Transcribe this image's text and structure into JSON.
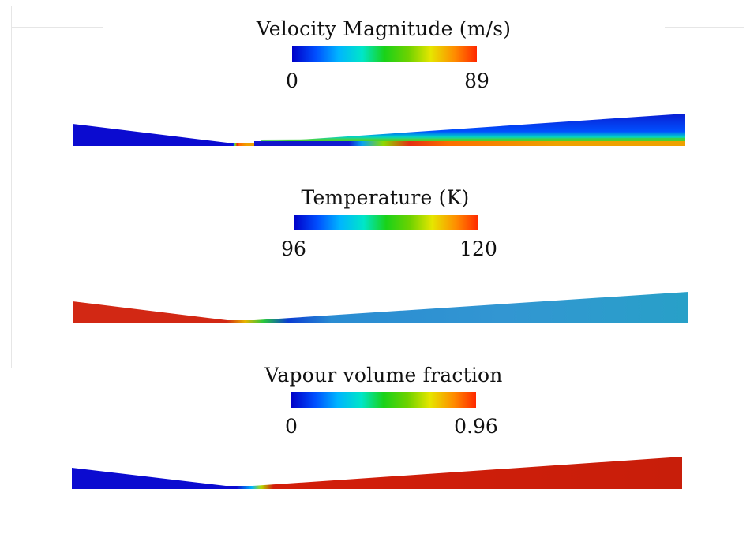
{
  "panels": [
    {
      "title": "Velocity Magnitude (m/s)",
      "min_label": "0",
      "max_label": "89"
    },
    {
      "title": "Temperature (K)",
      "min_label": "96",
      "max_label": "120"
    },
    {
      "title": "Vapour volume fraction",
      "min_label": "0",
      "max_label": "0.96"
    }
  ],
  "colormap": [
    "#0000c8",
    "#0050ff",
    "#00b4ff",
    "#00e6c8",
    "#19d219",
    "#6ed200",
    "#e6e600",
    "#ff8c00",
    "#ff2800"
  ]
}
